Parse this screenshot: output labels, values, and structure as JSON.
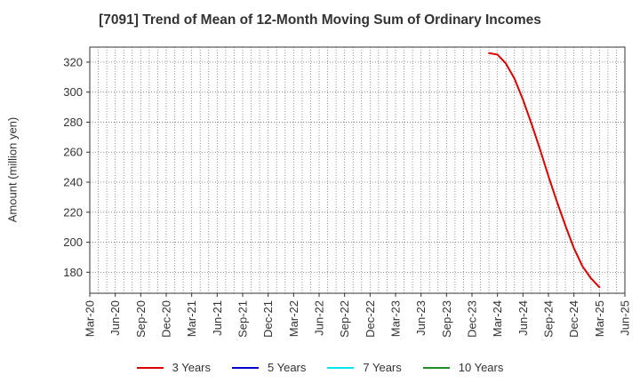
{
  "chart_data": {
    "type": "line",
    "title": "[7091]  Trend of Mean of 12-Month Moving Sum of Ordinary Incomes",
    "xlabel": "",
    "ylabel": "Amount (million yen)",
    "x_ticks": [
      "Mar-20",
      "Jun-20",
      "Sep-20",
      "Dec-20",
      "Mar-21",
      "Jun-21",
      "Sep-21",
      "Dec-21",
      "Mar-22",
      "Jun-22",
      "Sep-22",
      "Dec-22",
      "Mar-23",
      "Jun-23",
      "Sep-23",
      "Dec-23",
      "Mar-24",
      "Jun-24",
      "Sep-24",
      "Dec-24",
      "Mar-25",
      "Jun-25"
    ],
    "xlim": [
      "Mar-20",
      "Jun-25"
    ],
    "y_ticks": [
      180,
      200,
      220,
      240,
      260,
      280,
      300,
      320
    ],
    "ylim": [
      166,
      330
    ],
    "grid": true,
    "legend_position": "bottom",
    "series": [
      {
        "name": "3 Years",
        "color": "#dd0000",
        "x": [
          "Feb-24",
          "Mar-24",
          "Apr-24",
          "May-24",
          "Jun-24",
          "Jul-24",
          "Aug-24",
          "Sep-24",
          "Oct-24",
          "Nov-24",
          "Dec-24",
          "Jan-25",
          "Feb-25",
          "Mar-25"
        ],
        "values": [
          326,
          325,
          319,
          309,
          295,
          279,
          262,
          244,
          227,
          211,
          196,
          184,
          176,
          170
        ]
      },
      {
        "name": "5 Years",
        "color": "#0000cc",
        "x": [],
        "values": []
      },
      {
        "name": "7 Years",
        "color": "#00e5ee",
        "x": [],
        "values": []
      },
      {
        "name": "10 Years",
        "color": "#228b22",
        "x": [],
        "values": []
      }
    ]
  }
}
